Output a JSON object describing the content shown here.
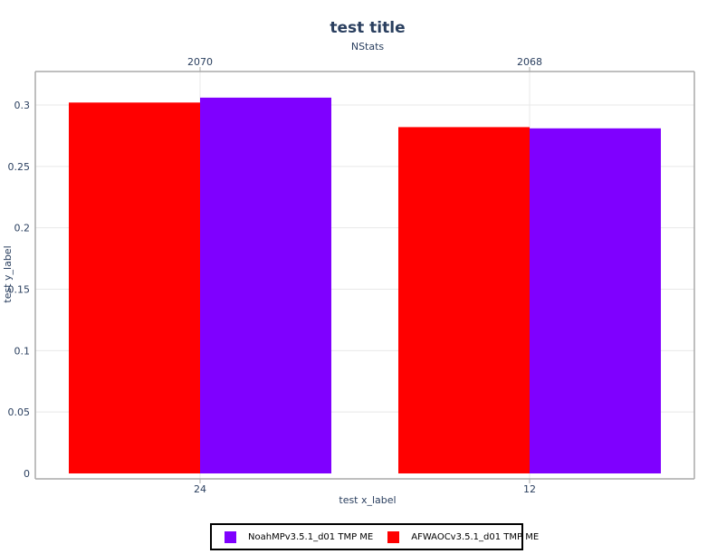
{
  "chart_data": {
    "type": "bar",
    "title": "test title",
    "top_axis_title": "NStats",
    "xlabel": "test x_label",
    "ylabel": "test y_label",
    "categories": [
      "24",
      "12"
    ],
    "top_categories": [
      "2070",
      "2068"
    ],
    "ylim": [
      0,
      0.3
    ],
    "yticks": [
      0,
      0.05,
      0.1,
      0.15,
      0.2,
      0.25,
      0.3
    ],
    "ytick_labels": [
      "0",
      "0.05",
      "0.1",
      "0.15",
      "0.2",
      "0.25",
      "0.3"
    ],
    "grid": true,
    "legend_placement": "bottom-center",
    "series": [
      {
        "name": "AFWAOCv3.5.1_d01 TMP ME",
        "color": "#ff0000",
        "values": [
          0.302,
          0.282
        ]
      },
      {
        "name": "NoahMPv3.5.1_d01 TMP ME",
        "color": "#7f00ff",
        "values": [
          0.306,
          0.281
        ]
      }
    ],
    "legend_order": [
      1,
      0
    ]
  }
}
